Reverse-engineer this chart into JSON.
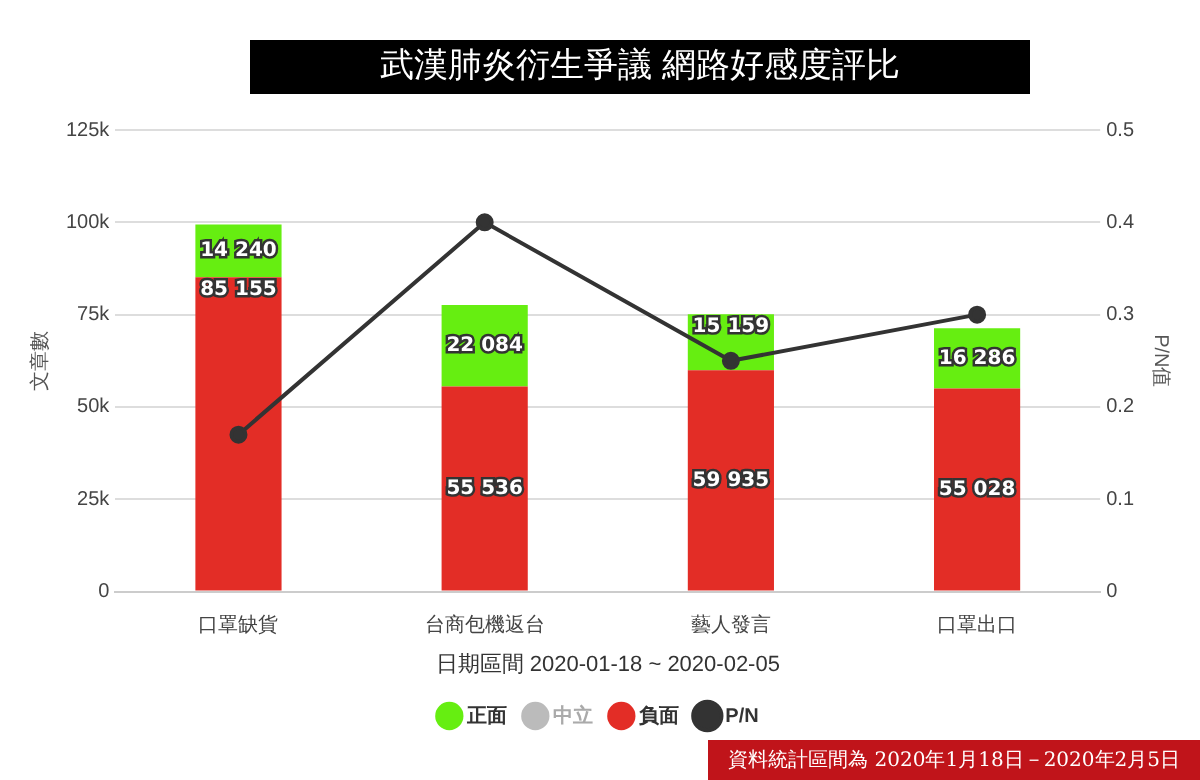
{
  "chart_data": {
    "type": "bar",
    "title": "武漢肺炎衍生爭議 網路好感度評比",
    "xlabel": "日期區間 2020-01-18 ~ 2020-02-05",
    "ylabel": "文章數",
    "y2label": "P/N值",
    "categories": [
      "口罩缺貨",
      "台商包機返台",
      "藝人發言",
      "口罩出口"
    ],
    "stacked": true,
    "series": [
      {
        "name": "負面",
        "color": "#e32d26",
        "values": [
          85155,
          55536,
          59935,
          55028
        ],
        "value_labels": [
          "85 155",
          "55 536",
          "59 935",
          "55 028"
        ]
      },
      {
        "name": "中立",
        "color": "#bbbbbb",
        "values": [
          null,
          null,
          null,
          null
        ]
      },
      {
        "name": "正面",
        "color": "#66ee11",
        "values": [
          14240,
          22084,
          15159,
          16286
        ],
        "value_labels": [
          "14 240",
          "22 084",
          "15 159",
          "16 286"
        ]
      },
      {
        "name": "P/N",
        "type": "line",
        "axis": "y2",
        "color": "#333333",
        "values": [
          0.17,
          0.4,
          0.25,
          0.3
        ]
      }
    ],
    "ylim": [
      0,
      125000
    ],
    "yticks": [
      0,
      {
        "value": 25000,
        "label": "25k"
      },
      {
        "value": 50000,
        "label": "50k"
      },
      {
        "value": 75000,
        "label": "75k"
      },
      {
        "value": 100000,
        "label": "100k"
      },
      {
        "value": 125000,
        "label": "125k"
      }
    ],
    "y2lim": [
      0,
      0.5
    ],
    "y2ticks": [
      0,
      0.1,
      0.2,
      0.3,
      0.4,
      0.5
    ],
    "grid": "y",
    "legend": "bottom",
    "marker": "circle",
    "line_style": "solid",
    "annotations": [
      "資料統計區間為 2020年1月18日－2020年2月5日"
    ]
  }
}
